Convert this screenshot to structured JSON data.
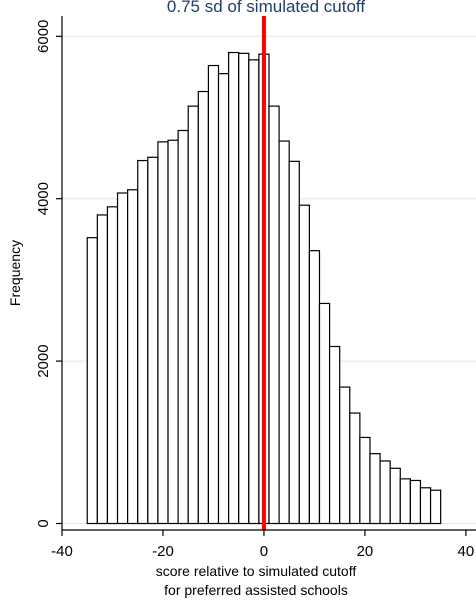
{
  "chart_data": {
    "type": "bar",
    "title": "0.75 sd of simulated cutoff",
    "xlabel_lines": [
      "score relative to simulated cutoff",
      "for preferred assisted schools"
    ],
    "ylabel": "Frequency",
    "xlim": [
      -40,
      42
    ],
    "ylim": [
      -80,
      6250
    ],
    "x_ticks": [
      "-40",
      "-20",
      "0",
      "20",
      "40"
    ],
    "y_ticks": [
      "0",
      "2000",
      "4000",
      "6000"
    ],
    "x_tick_values": [
      -40,
      -20,
      0,
      20,
      40
    ],
    "y_tick_values": [
      0,
      2000,
      4000,
      6000
    ],
    "grid": true,
    "bin_width": 2,
    "bins": [
      {
        "x": -34,
        "value": 3520
      },
      {
        "x": -32,
        "value": 3800
      },
      {
        "x": -30,
        "value": 3900
      },
      {
        "x": -28,
        "value": 4070
      },
      {
        "x": -26,
        "value": 4110
      },
      {
        "x": -24,
        "value": 4470
      },
      {
        "x": -22,
        "value": 4510
      },
      {
        "x": -20,
        "value": 4700
      },
      {
        "x": -18,
        "value": 4720
      },
      {
        "x": -16,
        "value": 4840
      },
      {
        "x": -14,
        "value": 5140
      },
      {
        "x": -12,
        "value": 5320
      },
      {
        "x": -10,
        "value": 5640
      },
      {
        "x": -8,
        "value": 5540
      },
      {
        "x": -6,
        "value": 5800
      },
      {
        "x": -4,
        "value": 5790
      },
      {
        "x": -2,
        "value": 5710
      },
      {
        "x": 0,
        "value": 5780
      },
      {
        "x": 2,
        "value": 5140
      },
      {
        "x": 4,
        "value": 4710
      },
      {
        "x": 6,
        "value": 4460
      },
      {
        "x": 8,
        "value": 3920
      },
      {
        "x": 10,
        "value": 3360
      },
      {
        "x": 12,
        "value": 2710
      },
      {
        "x": 14,
        "value": 2180
      },
      {
        "x": 16,
        "value": 1680
      },
      {
        "x": 18,
        "value": 1360
      },
      {
        "x": 20,
        "value": 1060
      },
      {
        "x": 22,
        "value": 860
      },
      {
        "x": 24,
        "value": 770
      },
      {
        "x": 26,
        "value": 680
      },
      {
        "x": 28,
        "value": 550
      },
      {
        "x": 30,
        "value": 530
      },
      {
        "x": 32,
        "value": 440
      },
      {
        "x": 34,
        "value": 410
      }
    ],
    "cutoff_line": {
      "x": 0,
      "color": "#ff0000"
    },
    "colors": {
      "background": "#ffffff",
      "bar_fill": "#ffffff",
      "bar_stroke": "#000000",
      "grid": "#dde6ee",
      "title": "#1f3f6f"
    }
  }
}
